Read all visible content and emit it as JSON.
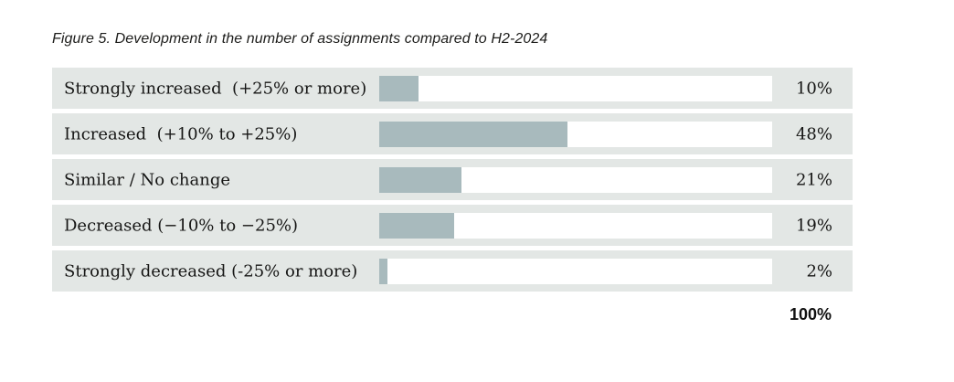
{
  "figure": {
    "title": "Figure 5. Development in the number of assignments compared to H2-2024",
    "total_label": "100%"
  },
  "chart_data": {
    "type": "bar",
    "orientation": "horizontal",
    "title": "Figure 5. Development in the number of assignments compared to H2-2024",
    "categories": [
      "Strongly increased  (+25% or more)",
      "Increased  (+10% to +25%)",
      "Similar / No change",
      "Decreased (−10% to −25%)",
      "Strongly decreased (-25% or more)"
    ],
    "values": [
      10,
      48,
      21,
      19,
      2
    ],
    "value_labels": [
      "10%",
      "48%",
      "21%",
      "19%",
      "2%"
    ],
    "total": "100%",
    "xlim": [
      0,
      100
    ],
    "grid": false,
    "legend": false,
    "colors": {
      "row_background": "#e3e7e5",
      "bar_track": "#ffffff",
      "bar_fill": "#a8babd",
      "text": "#161615"
    }
  }
}
